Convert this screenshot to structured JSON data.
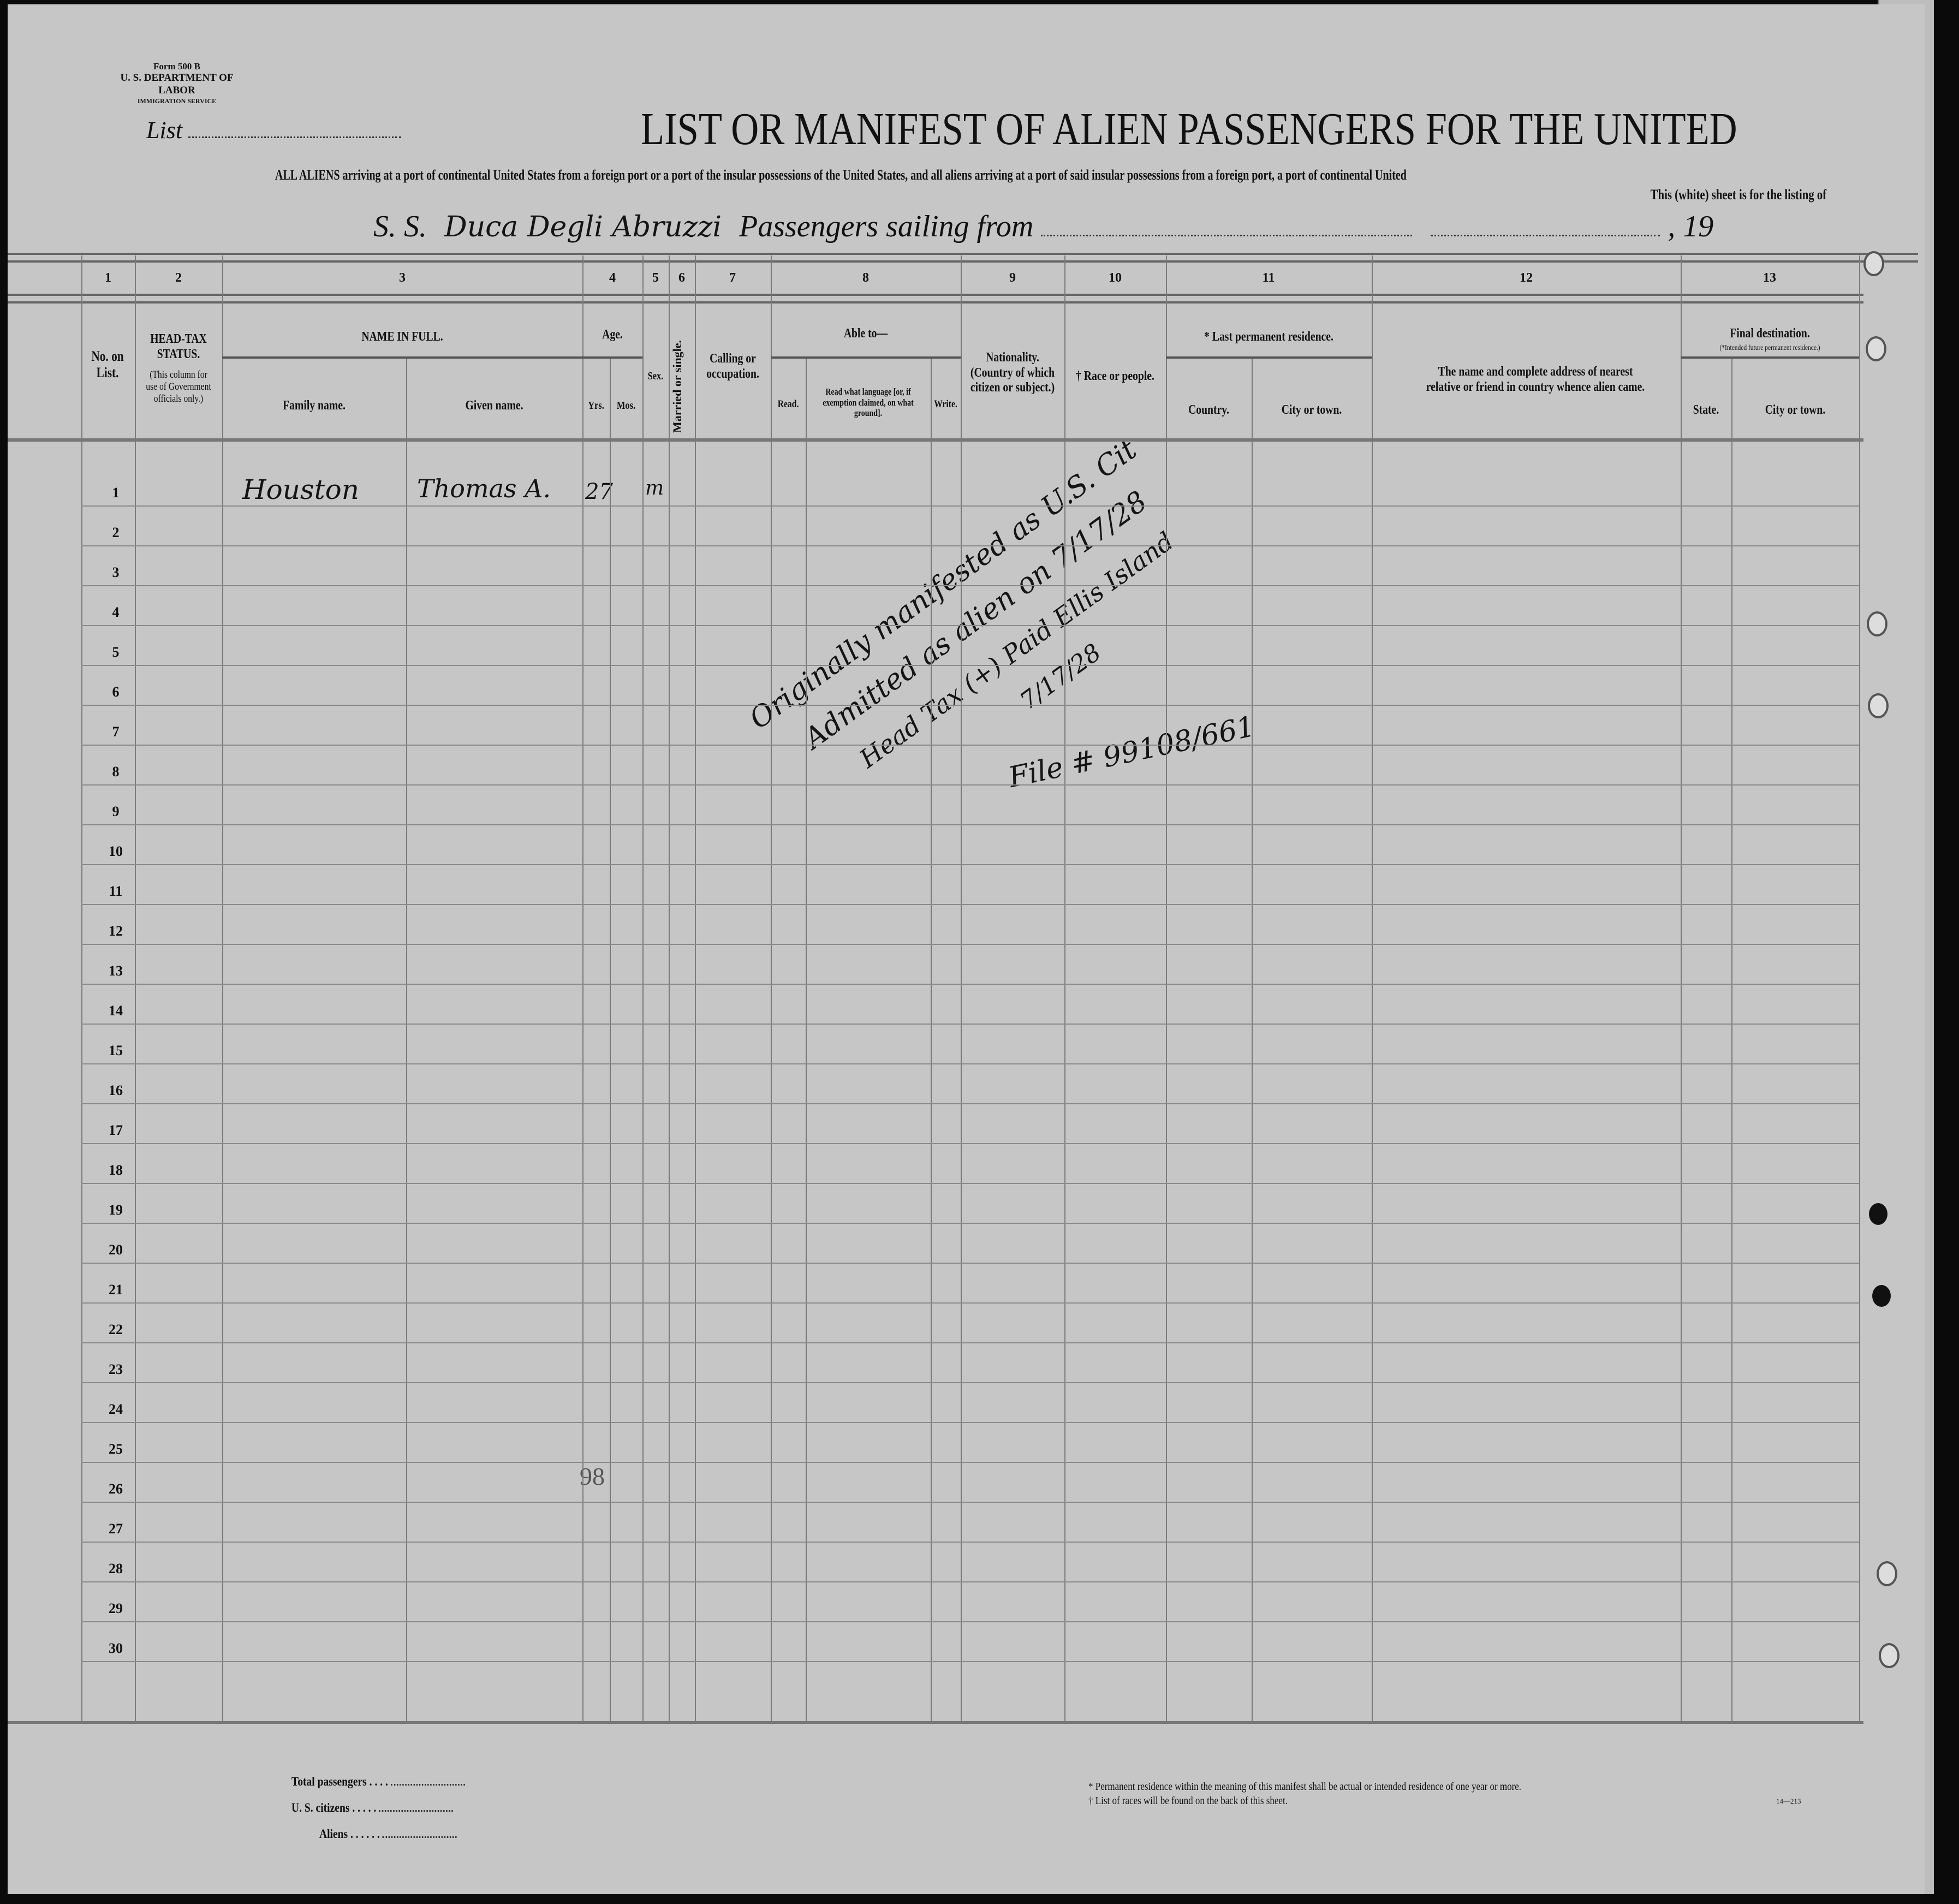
{
  "form": {
    "form_number": "Form 500 B",
    "department": "U. S. DEPARTMENT OF LABOR",
    "service": "IMMIGRATION SERVICE",
    "list_label": "List",
    "title": "LIST OR MANIFEST OF ALIEN PASSENGERS FOR THE UNITED",
    "subtitle": "ALL ALIENS arriving at a port of continental United States from a foreign port or a port of the insular possessions of the United States, and all aliens arriving at a port of said insular possessions from a foreign port, a port of continental United",
    "subtitle2": "This (white) sheet is for the listing of",
    "ss_label": "S. S.",
    "ship_name": "Duca Degli Abruzzi",
    "sailing_label": "Passengers sailing from",
    "year_label": ", 19"
  },
  "columns": {
    "numbers": [
      "1",
      "2",
      "3",
      "4",
      "5",
      "6",
      "7",
      "8",
      "9",
      "10",
      "11",
      "12",
      "13"
    ],
    "no_on_list": "No. on List.",
    "head_tax": "HEAD-TAX STATUS.",
    "head_tax_note": "(This column for use of Government officials only.)",
    "name_in_full": "NAME IN FULL.",
    "family_name": "Family name.",
    "given_name": "Given name.",
    "age": "Age.",
    "yrs": "Yrs.",
    "mos": "Mos.",
    "sex": "Sex.",
    "married": "Married or single.",
    "calling": "Calling or occupation.",
    "able_to": "Able to—",
    "read": "Read.",
    "read_language": "Read what language [or, if exemption claimed, on what ground].",
    "write": "Write.",
    "nationality": "Nationality. (Country of which citizen or subject.)",
    "race": "† Race or people.",
    "last_residence": "* Last permanent residence.",
    "country": "Country.",
    "city_town": "City or town.",
    "relative": "The name and complete address of nearest relative or friend in country whence alien came.",
    "final_destination": "Final destination.",
    "final_destination_note": "(*Intended future permanent residence.)",
    "state": "State.",
    "dest_city": "City or town."
  },
  "rows": [
    "1",
    "2",
    "3",
    "4",
    "5",
    "6",
    "7",
    "8",
    "9",
    "10",
    "11",
    "12",
    "13",
    "14",
    "15",
    "16",
    "17",
    "18",
    "19",
    "20",
    "21",
    "22",
    "23",
    "24",
    "25",
    "26",
    "27",
    "28",
    "29",
    "30"
  ],
  "entry": {
    "family_name": "Houston",
    "given_name": "Thomas A.",
    "age_yrs": "27",
    "sex": "m"
  },
  "annotation": {
    "line1": "Originally manifested as U.S. Cit",
    "line2": "Admitted as alien on 7/17/28",
    "line3": "Head Tax (+) Paid Ellis Island",
    "line4": "7/17/28",
    "file": "File # 99108/661"
  },
  "stamp_number": "98",
  "footer": {
    "total": "Total passengers . . . .",
    "citizens": "U. S. citizens . . . . .",
    "aliens": "Aliens . . . . . .",
    "note1": "* Permanent residence within the meaning of this manifest shall be actual or intended residence of one year or more.",
    "note2": "† List of races will be found on the back of this sheet.",
    "code": "14—213"
  }
}
